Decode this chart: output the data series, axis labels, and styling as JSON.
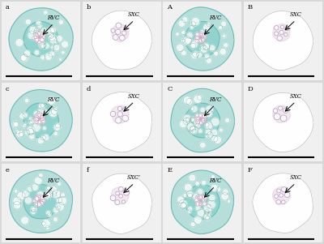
{
  "figsize": [
    4.0,
    3.01
  ],
  "dpi": 100,
  "bg_color": "#d8d8d8",
  "cell_bg": "#f0f0f0",
  "teal_fill": "#7ecec8",
  "teal_light": "#a8deda",
  "teal_outline": "#60b0aa",
  "cell_wall": "#50a090",
  "pink_vasc": "#d0a8c0",
  "pink_center": "#c090b0",
  "pale_bg": "#f8f8f8",
  "pale_outline": "#bbbbbb",
  "labels": [
    "a",
    "b",
    "A",
    "B",
    "c",
    "d",
    "C",
    "D",
    "e",
    "f",
    "E",
    "F"
  ],
  "annotations": [
    "RVC",
    "SXC",
    "RVC",
    "SXC",
    "RVC",
    "SXC",
    "RVC",
    "SXC",
    "RVC",
    "SXC’",
    "RVC",
    "SXC"
  ],
  "label_fontsize": 6,
  "annot_fontsize": 5
}
